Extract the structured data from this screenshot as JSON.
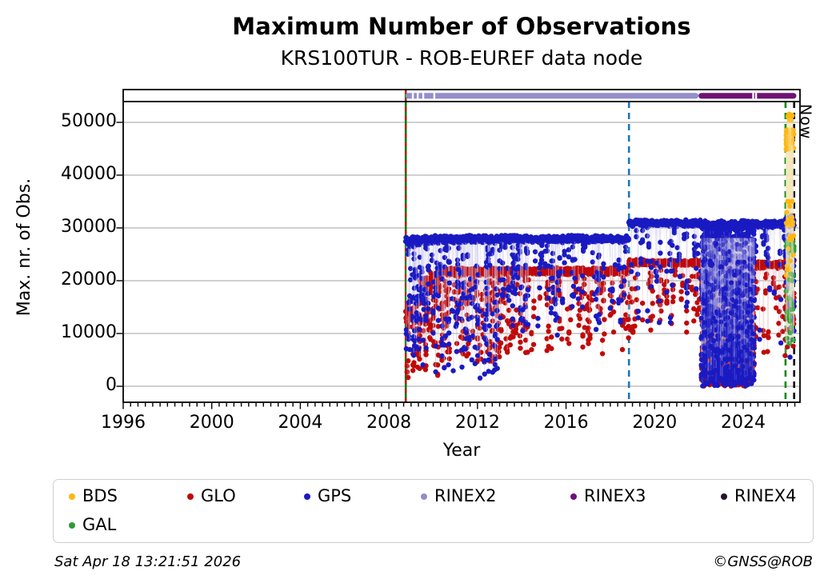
{
  "header": {
    "title": "Maximum Number of Observations",
    "subtitle": "KRS100TUR - ROB-EUREF data node"
  },
  "now_label": "Now",
  "footer": {
    "timestamp": "Sat Apr 18 13:21:51 2026",
    "credit": "©GNSS@ROB"
  },
  "legend": {
    "items": [
      {
        "label": "BDS",
        "color": "#ffb60e"
      },
      {
        "label": "GLO",
        "color": "#c00a0a"
      },
      {
        "label": "GPS",
        "color": "#1a1ac2"
      },
      {
        "label": "RINEX2",
        "color": "#938dcb"
      },
      {
        "label": "RINEX3",
        "color": "#6e1374"
      },
      {
        "label": "RINEX4",
        "color": "#2a1030"
      },
      {
        "label": "GAL",
        "color": "#2f9b35"
      }
    ]
  },
  "chart_data": {
    "type": "scatter",
    "title": "Maximum Number of Observations",
    "subtitle": "KRS100TUR - ROB-EUREF data node",
    "xlabel": "Year",
    "ylabel": "Max. nr. of Obs.",
    "xlim": [
      1996,
      2026.57
    ],
    "ylim": [
      -3000,
      54200
    ],
    "grid": true,
    "xticks": [
      1996,
      2000,
      2004,
      2008,
      2012,
      2016,
      2020,
      2024
    ],
    "yticks": [
      0,
      10000,
      20000,
      30000,
      40000,
      50000
    ],
    "minor_xtick_step_years": 0.3333,
    "highlight_band": {
      "x0": 2025.93,
      "x1": 2026.29,
      "top": 51200,
      "bottom": 9000,
      "color": "#faf2d8"
    },
    "events": [
      {
        "x": 2008.76,
        "style": "solid",
        "color": "#007a00",
        "overlay_dash_color": "#d40000",
        "full_height": true
      },
      {
        "x": 2018.84,
        "style": "dashed",
        "color": "#1f77b4"
      },
      {
        "x": 2025.91,
        "style": "dashed",
        "color": "#0c8a0c"
      },
      {
        "x": 2026.3,
        "style": "dashed",
        "color": "#000000",
        "label": "Now"
      }
    ],
    "rinex_bars": [
      {
        "name": "RINEX2",
        "color": "#938dcb",
        "x0": 2008.74,
        "x1": 2021.98,
        "gaps": [
          2009.08,
          2009.3,
          2009.55,
          2010.05
        ]
      },
      {
        "name": "RINEX3",
        "color": "#6e1374",
        "x0": 2021.98,
        "x1": 2026.4,
        "gaps": [
          2024.45,
          2024.58
        ]
      }
    ],
    "series": [
      {
        "name": "GLO",
        "color": "#c00a0a",
        "stem": "#ecc2c2",
        "bands": [
          {
            "x0": 2008.76,
            "x1": 2009.4,
            "mean": 14000,
            "jitter": 3000,
            "dipP": 0.3,
            "dipLo": 1000,
            "dipHi": 10000
          },
          {
            "x0": 2009.4,
            "x1": 2010.3,
            "mean": 19500,
            "jitter": 1800,
            "dipP": 0.3,
            "dipLo": 2000,
            "dipHi": 16000
          },
          {
            "x0": 2010.3,
            "x1": 2013.0,
            "mean": 21700,
            "jitter": 700,
            "dipP": 0.3,
            "dipLo": 3000,
            "dipHi": 20000
          },
          {
            "x0": 2013.0,
            "x1": 2018.84,
            "mean": 21800,
            "jitter": 600,
            "dipP": 0.17,
            "dipLo": 6000,
            "dipHi": 20500
          },
          {
            "x0": 2018.84,
            "x1": 2022.1,
            "mean": 23400,
            "jitter": 500,
            "dipP": 0.13,
            "dipLo": 9000,
            "dipHi": 22000
          },
          {
            "x0": 2022.1,
            "x1": 2024.5,
            "mean": 23200,
            "jitter": 900,
            "dipP": 0
          },
          {
            "x0": 2024.5,
            "x1": 2025.91,
            "mean": 23000,
            "jitter": 600,
            "dipP": 0.15,
            "dipLo": 5000,
            "dipHi": 21500
          },
          {
            "x0": 2025.91,
            "x1": 2026.3,
            "mean": 23800,
            "jitter": 1000,
            "dipP": 0.5,
            "dipLo": 6000,
            "dipHi": 22000
          }
        ],
        "chaos": {
          "x0": 2022.1,
          "x1": 2024.5,
          "lo": 0,
          "hi": 24500,
          "count": 1000
        }
      },
      {
        "name": "GPS",
        "color": "#1a1ac2",
        "stem": "#c9c5e8",
        "bands": [
          {
            "x0": 2008.76,
            "x1": 2009.5,
            "mean": 27500,
            "jitter": 900,
            "dipP": 0.32,
            "dipLo": 4000,
            "dipHi": 26000
          },
          {
            "x0": 2009.5,
            "x1": 2013.0,
            "mean": 27800,
            "jitter": 650,
            "dipP": 0.3,
            "dipLo": 1500,
            "dipHi": 26500
          },
          {
            "x0": 2013.0,
            "x1": 2018.84,
            "mean": 27900,
            "jitter": 600,
            "dipP": 0.17,
            "dipLo": 9000,
            "dipHi": 26800
          },
          {
            "x0": 2018.84,
            "x1": 2022.1,
            "mean": 30900,
            "jitter": 550,
            "dipP": 0.13,
            "dipLo": 12000,
            "dipHi": 29500
          },
          {
            "x0": 2022.1,
            "x1": 2024.5,
            "mean": 30500,
            "jitter": 800,
            "dipP": 0
          },
          {
            "x0": 2024.5,
            "x1": 2025.91,
            "mean": 30700,
            "jitter": 600,
            "dipP": 0.15,
            "dipLo": 8000,
            "dipHi": 29500
          },
          {
            "x0": 2025.91,
            "x1": 2026.3,
            "mean": 31400,
            "jitter": 1000,
            "dipP": 0.5,
            "dipLo": 5000,
            "dipHi": 29000
          }
        ],
        "chaos": {
          "x0": 2022.1,
          "x1": 2024.5,
          "lo": 0,
          "hi": 30200,
          "count": 1500
        }
      },
      {
        "name": "GAL",
        "color": "#2f9b35",
        "stem": "#cfe8cf",
        "clusters": [
          {
            "x0": 2025.93,
            "x1": 2026.29,
            "lo": 25200,
            "hi": 27600,
            "count": 48
          },
          {
            "x0": 2025.93,
            "x1": 2026.29,
            "lo": 8000,
            "hi": 25000,
            "count": 20
          }
        ]
      },
      {
        "name": "BDS",
        "color": "#ffb60e",
        "stem": "#f6e7bd",
        "clusters": [
          {
            "x0": 2025.93,
            "x1": 2026.29,
            "lo": 44800,
            "hi": 48600,
            "count": 60
          },
          {
            "x0": 2026.02,
            "x1": 2026.22,
            "lo": 50200,
            "hi": 51600,
            "count": 14
          },
          {
            "x0": 2025.93,
            "x1": 2026.29,
            "lo": 20000,
            "hi": 35500,
            "count": 26
          }
        ]
      }
    ]
  }
}
